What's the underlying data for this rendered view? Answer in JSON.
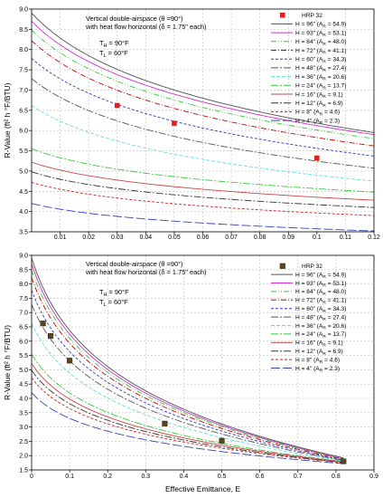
{
  "colors": {
    "H96": "#505050",
    "H93": "#cc33cc",
    "H84": "#33cc33",
    "H72": "#cc0000",
    "H60": "#3333cc",
    "H48": "#555555",
    "H36": "#66dddd",
    "H24": "#33cc33",
    "H16": "#cc4444",
    "H12": "#333333",
    "H8": "#cc2222",
    "H4": "#3344bb",
    "hrp_top": "#e02020",
    "hrp_bottom": "#5a4520"
  },
  "chart_data": [
    {
      "type": "line",
      "title": "",
      "xlabel": "",
      "ylabel": "R-Value (ft² h °F/BTU)",
      "xlim": [
        0.0,
        0.12
      ],
      "ylim": [
        3.5,
        9.0
      ],
      "xticks": [
        "0.01",
        "0.02",
        "0.03",
        "0.04",
        "0.05",
        "0.06",
        "0.07",
        "0.08",
        "0.09",
        "0.1",
        "0.11",
        "0.12"
      ],
      "yticks": [
        "3.5",
        "4.0",
        "4.5",
        "5.0",
        "5.5",
        "6.0",
        "6.5",
        "7.0",
        "7.5",
        "8.0",
        "8.5",
        "9.0"
      ],
      "grid": true,
      "legend_position": "top-right",
      "annotations": {
        "line1": "Vertical double-airspace (θ =90°)",
        "line2": "with heat flow horizontal (δ = 1.75\" each)",
        "th": "T",
        "th_sub": "H",
        "th_val": " = 90°F",
        "tl": "T",
        "tl_sub": "L",
        "tl_val": " = 60°F"
      },
      "legend": [
        {
          "label": "HRP 32",
          "marker": "square"
        },
        {
          "label": "H = 96\" (A",
          "sub": "R",
          "label2": " = 54.9)"
        },
        {
          "label": "H = 93\" (A",
          "sub": "R",
          "label2": " = 53.1)"
        },
        {
          "label": "H = 84\" (A",
          "sub": "R",
          "label2": " = 48.0)"
        },
        {
          "label": "H = 72\" (A",
          "sub": "R",
          "label2": " = 41.1)"
        },
        {
          "label": "H = 60\" (A",
          "sub": "R",
          "label2": " = 34.3)"
        },
        {
          "label": "H = 48\" (A",
          "sub": "R",
          "label2": " = 27.4)"
        },
        {
          "label": "H = 36\" (A",
          "sub": "R",
          "label2": " = 20.6)"
        },
        {
          "label": "H = 24\" (A",
          "sub": "R",
          "label2": " = 13.7)"
        },
        {
          "label": "H = 16\" (A",
          "sub": "R",
          "label2": " = 9.1)"
        },
        {
          "label": "H = 12\" (A",
          "sub": "R",
          "label2": " = 6.9)"
        },
        {
          "label": "H = 8\" (A",
          "sub": "R",
          "label2": " = 4.6)"
        },
        {
          "label": "H = 4\" (A",
          "sub": "R",
          "label2": " = 2.3)"
        }
      ],
      "markers": [
        {
          "x": 0.03,
          "y": 6.62
        },
        {
          "x": 0.05,
          "y": 6.18
        },
        {
          "x": 0.1,
          "y": 5.32
        }
      ],
      "series": [
        {
          "key": "H96",
          "dash": "",
          "x": [
            0,
            0.12
          ],
          "y": [
            8.9,
            5.95
          ],
          "curve": 1.0
        },
        {
          "key": "H93",
          "dash": "",
          "x": [
            0,
            0.12
          ],
          "y": [
            8.7,
            5.9
          ],
          "curve": 1.0
        },
        {
          "key": "H84",
          "dash": "6,2,1,2,1,2",
          "x": [
            0,
            0.12
          ],
          "y": [
            8.48,
            5.8
          ],
          "curve": 1.0
        },
        {
          "key": "H72",
          "dash": "6,2,1,2",
          "x": [
            0,
            0.12
          ],
          "y": [
            8.22,
            5.62
          ],
          "curve": 1.0
        },
        {
          "key": "H60",
          "dash": "3,2",
          "x": [
            0,
            0.12
          ],
          "y": [
            7.78,
            5.37
          ],
          "curve": 1.0
        },
        {
          "key": "H48",
          "dash": "8,2,2,2",
          "x": [
            0,
            0.12
          ],
          "y": [
            7.28,
            5.07
          ],
          "curve": 1.0
        },
        {
          "key": "H36",
          "dash": "4,2",
          "x": [
            0,
            0.12
          ],
          "y": [
            6.62,
            4.75
          ],
          "curve": 1.0
        },
        {
          "key": "H24",
          "dash": "8,2,2,2",
          "x": [
            0,
            0.12
          ],
          "y": [
            5.55,
            4.48
          ],
          "curve": 1.0
        },
        {
          "key": "H16",
          "dash": "",
          "x": [
            0,
            0.12
          ],
          "y": [
            5.22,
            4.28
          ],
          "curve": 1.0
        },
        {
          "key": "H12",
          "dash": "8,2,2,2",
          "x": [
            0,
            0.12
          ],
          "y": [
            4.98,
            4.1
          ],
          "curve": 1.0
        },
        {
          "key": "H8",
          "dash": "3,2",
          "x": [
            0,
            0.12
          ],
          "y": [
            4.72,
            3.9
          ],
          "curve": 1.0
        },
        {
          "key": "H4",
          "dash": "10,3",
          "x": [
            0,
            0.12
          ],
          "y": [
            4.2,
            3.52
          ],
          "curve": 1.0
        }
      ]
    },
    {
      "type": "line",
      "title": "",
      "xlabel": "Effective Emittance, E",
      "ylabel": "R-Value (ft² h °F/BTU)",
      "xlim": [
        0.0,
        0.9
      ],
      "ylim": [
        1.5,
        9.0
      ],
      "xticks": [
        "0",
        "0.1",
        "0.2",
        "0.3",
        "0.4",
        "0.5",
        "0.6",
        "0.7",
        "0.8",
        "0.9"
      ],
      "yticks": [
        "1.5",
        "2.0",
        "2.5",
        "3.0",
        "3.5",
        "4.0",
        "4.5",
        "5.0",
        "5.5",
        "6.0",
        "6.5",
        "7.0",
        "7.5",
        "8.0",
        "8.5",
        "9.0"
      ],
      "grid": true,
      "legend_position": "top-right",
      "annotations": {
        "line1": "Vertical double-airspace (θ =90°)",
        "line2": "with heat flow horizontal (δ = 1.75\" each)",
        "th": "T",
        "th_sub": "H",
        "th_val": " = 90°F",
        "tl": "T",
        "tl_sub": "L",
        "tl_val": " = 60°F"
      },
      "legend": [
        {
          "label": "HRP 32",
          "marker": "square"
        },
        {
          "label": "H = 96\" (A",
          "sub": "R",
          "label2": " = 54.9)"
        },
        {
          "label": "H = 93\" (A",
          "sub": "R",
          "label2": " = 53.1)"
        },
        {
          "label": "H = 84\" (A",
          "sub": "R",
          "label2": " = 48.0)"
        },
        {
          "label": "H = 72\" (A",
          "sub": "R",
          "label2": " = 41.1)"
        },
        {
          "label": "H = 60\" (A",
          "sub": "R",
          "label2": " = 34.3)"
        },
        {
          "label": "H = 48\" (A",
          "sub": "R",
          "label2": " = 27.4)"
        },
        {
          "label": "H = 36\" (A",
          "sub": "R",
          "label2": " = 20.6)"
        },
        {
          "label": "H = 24\" (A",
          "sub": "R",
          "label2": " = 13.7)"
        },
        {
          "label": "H = 16\" (A",
          "sub": "R",
          "label2": " = 9.1)"
        },
        {
          "label": "H = 12\" (A",
          "sub": "R",
          "label2": " = 6.9)"
        },
        {
          "label": "H = 8\" (A",
          "sub": "R",
          "label2": " = 4.6)"
        },
        {
          "label": "H = 4\" (A",
          "sub": "R",
          "label2": " = 2.3)"
        }
      ],
      "markers": [
        {
          "x": 0.03,
          "y": 6.62
        },
        {
          "x": 0.05,
          "y": 6.18
        },
        {
          "x": 0.1,
          "y": 5.32
        },
        {
          "x": 0.35,
          "y": 3.12
        },
        {
          "x": 0.5,
          "y": 2.52
        },
        {
          "x": 0.82,
          "y": 1.8
        }
      ],
      "series": [
        {
          "key": "H96",
          "dash": "",
          "x": [
            0,
            0.82
          ],
          "y": [
            8.9,
            1.92
          ],
          "curve": 2.2
        },
        {
          "key": "H93",
          "dash": "",
          "x": [
            0,
            0.82
          ],
          "y": [
            8.7,
            1.9
          ],
          "curve": 2.2
        },
        {
          "key": "H84",
          "dash": "6,2,1,2,1,2",
          "x": [
            0,
            0.82
          ],
          "y": [
            8.48,
            1.89
          ],
          "curve": 2.2
        },
        {
          "key": "H72",
          "dash": "6,2,1,2",
          "x": [
            0,
            0.82
          ],
          "y": [
            8.22,
            1.87
          ],
          "curve": 2.2
        },
        {
          "key": "H60",
          "dash": "3,2",
          "x": [
            0,
            0.82
          ],
          "y": [
            7.78,
            1.85
          ],
          "curve": 2.2
        },
        {
          "key": "H48",
          "dash": "8,2,2,2",
          "x": [
            0,
            0.82
          ],
          "y": [
            7.28,
            1.83
          ],
          "curve": 2.2
        },
        {
          "key": "H36",
          "dash": "4,2",
          "x": [
            0,
            0.82
          ],
          "y": [
            6.62,
            1.81
          ],
          "curve": 2.2
        },
        {
          "key": "H24",
          "dash": "8,2,2,2",
          "x": [
            0,
            0.82
          ],
          "y": [
            5.55,
            1.79
          ],
          "curve": 2.2
        },
        {
          "key": "H16",
          "dash": "",
          "x": [
            0,
            0.82
          ],
          "y": [
            5.22,
            1.78
          ],
          "curve": 2.2
        },
        {
          "key": "H12",
          "dash": "8,2,2,2",
          "x": [
            0,
            0.82
          ],
          "y": [
            4.98,
            1.76
          ],
          "curve": 2.2
        },
        {
          "key": "H8",
          "dash": "3,2",
          "x": [
            0,
            0.82
          ],
          "y": [
            4.72,
            1.75
          ],
          "curve": 2.2
        },
        {
          "key": "H4",
          "dash": "10,3",
          "x": [
            0,
            0.82
          ],
          "y": [
            4.2,
            1.72
          ],
          "curve": 2.2
        }
      ]
    }
  ]
}
